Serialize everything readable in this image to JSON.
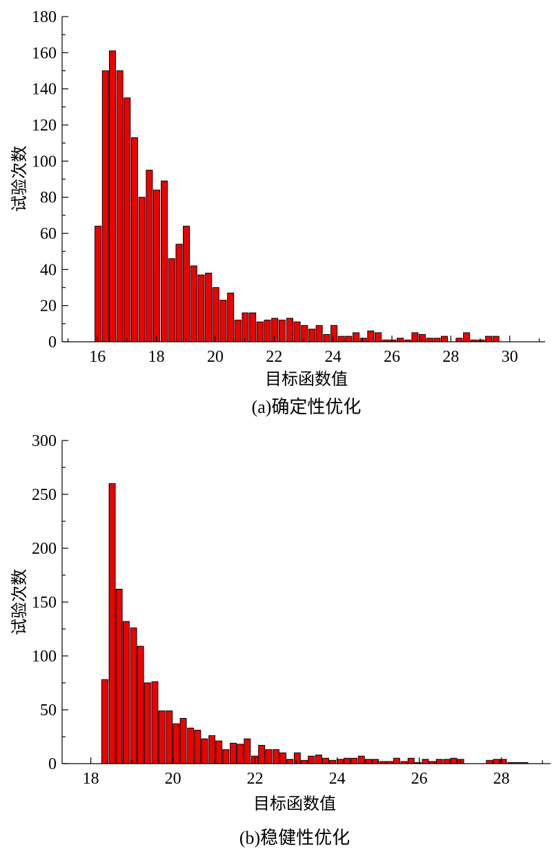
{
  "chart_data": [
    {
      "type": "bar",
      "caption": "(a)确定性优化",
      "xlabel": "目标函数值",
      "ylabel": "试验次数",
      "xlim": [
        14.8,
        31.2
      ],
      "ylim": [
        0,
        180
      ],
      "xticks": [
        16,
        18,
        20,
        22,
        24,
        26,
        28,
        30
      ],
      "yticks": [
        0,
        20,
        40,
        60,
        80,
        100,
        120,
        140,
        160,
        180
      ],
      "bar_width": 0.21,
      "x": [
        16.02,
        16.27,
        16.51,
        16.76,
        17.01,
        17.26,
        17.51,
        17.76,
        18.01,
        18.27,
        18.52,
        18.77,
        19.02,
        19.27,
        19.52,
        19.77,
        20.02,
        20.27,
        20.52,
        20.77,
        21.02,
        21.27,
        21.52,
        21.77,
        22.02,
        22.27,
        22.53,
        22.78,
        23.03,
        23.28,
        23.53,
        23.78,
        24.03,
        24.28,
        24.53,
        24.78,
        25.03,
        25.28,
        25.53,
        25.78,
        26.03,
        26.28,
        26.53,
        26.78,
        27.03,
        27.28,
        27.53,
        27.78,
        28.03,
        28.28,
        28.53,
        28.78,
        29.03,
        29.28,
        29.53,
        29.78,
        30.03
      ],
      "values": [
        64,
        150,
        161,
        150,
        135,
        113,
        80,
        95,
        84,
        89,
        46,
        54,
        64,
        42,
        37,
        38,
        30,
        23,
        27,
        12,
        16,
        16,
        11,
        12,
        13,
        12,
        13,
        11,
        9,
        7,
        9,
        4,
        9,
        3,
        3,
        5,
        2,
        6,
        5,
        1,
        1,
        2,
        1,
        5,
        4,
        2,
        2,
        3,
        0,
        2,
        5,
        1,
        1,
        3,
        3,
        0,
        0
      ]
    },
    {
      "type": "bar",
      "caption": "(b)稳健性优化",
      "xlabel": "目标函数值",
      "ylabel": "试验次数",
      "xlim": [
        17.3,
        29.2
      ],
      "ylim": [
        0,
        300
      ],
      "xticks": [
        18,
        20,
        22,
        24,
        26,
        28
      ],
      "yticks": [
        0,
        50,
        100,
        150,
        200,
        250,
        300
      ],
      "bar_width": 0.15,
      "x": [
        18.34,
        18.52,
        18.69,
        18.86,
        19.04,
        19.21,
        19.38,
        19.56,
        19.73,
        19.91,
        20.08,
        20.25,
        20.43,
        20.6,
        20.77,
        20.95,
        21.12,
        21.29,
        21.47,
        21.64,
        21.81,
        21.99,
        22.16,
        22.33,
        22.51,
        22.68,
        22.85,
        23.03,
        23.2,
        23.37,
        23.55,
        23.72,
        23.89,
        24.07,
        24.24,
        24.41,
        24.59,
        24.76,
        24.93,
        25.11,
        25.28,
        25.45,
        25.63,
        25.8,
        25.97,
        26.15,
        26.32,
        26.49,
        26.67,
        26.84,
        27.01,
        27.19,
        27.36,
        27.53,
        27.71,
        27.88,
        28.05,
        28.23,
        28.4,
        28.57,
        28.75,
        28.92,
        29.09
      ],
      "values": [
        78,
        260,
        162,
        132,
        126,
        109,
        75,
        76,
        49,
        49,
        37,
        42,
        33,
        31,
        23,
        26,
        21,
        13,
        19,
        18,
        23,
        7,
        17,
        13,
        13,
        10,
        4,
        10,
        3,
        7,
        8,
        5,
        3,
        4,
        5,
        5,
        7,
        4,
        4,
        2,
        2,
        5,
        2,
        5,
        1,
        4,
        2,
        4,
        4,
        5,
        4,
        0,
        0,
        0,
        3,
        4,
        4,
        1,
        1,
        1,
        0,
        0,
        0
      ]
    }
  ]
}
